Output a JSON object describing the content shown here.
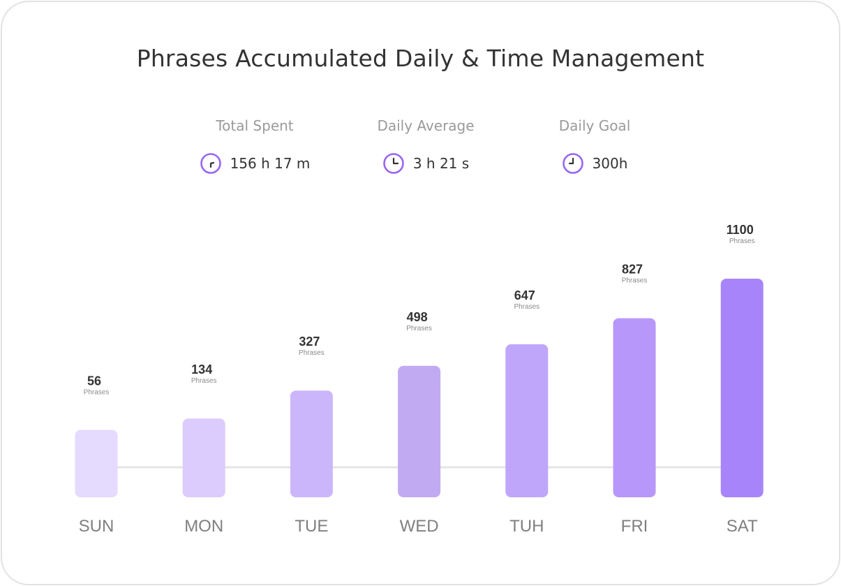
{
  "title": "Phrases Accumulated Daily & Time Management",
  "stats": [
    {
      "label": "Total Spent",
      "value": "156 h 17 m",
      "icon": "clock-icon"
    },
    {
      "label": "Daily Average",
      "value": "3 h 21 s",
      "icon": "clock-icon"
    },
    {
      "label": "Daily Goal",
      "value": "300h",
      "icon": "clock-icon"
    }
  ],
  "colors": {
    "accent": "#9966f0",
    "bars": [
      "#e5daff",
      "#dccbfd",
      "#ccb6fb",
      "#c2aaf3",
      "#bfa6fa",
      "#b897fa",
      "#a884fa"
    ],
    "baseline": "#e4e4e4"
  },
  "chart_data": {
    "type": "bar",
    "categories": [
      "SUN",
      "MON",
      "TUE",
      "WED",
      "TUH",
      "FRI",
      "SAT"
    ],
    "values": [
      56,
      134,
      327,
      498,
      647,
      827,
      1100
    ],
    "value_unit": "Phrases",
    "title": "Phrases Accumulated Daily & Time Management",
    "xlabel": "",
    "ylabel": "",
    "grid": false,
    "legend": "none"
  }
}
